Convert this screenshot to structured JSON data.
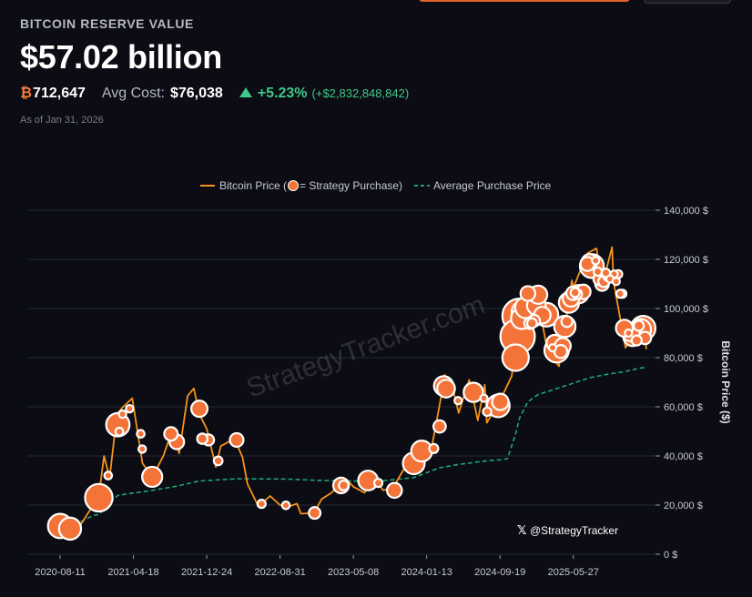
{
  "header": {
    "section_title": "BITCOIN RESERVE VALUE",
    "total_value": "$57.02 billion",
    "btc_symbol": "₿",
    "btc_amount": "712,647",
    "avg_cost_label": "Avg Cost:",
    "avg_cost_value": "$76,038",
    "change_pct": "+5.23%",
    "change_abs": "(+$2,832,848,842)",
    "as_of": "As of Jan 31, 2026"
  },
  "watermark": "StrategyTracker.com",
  "credit": {
    "icon": "x-logo-icon",
    "handle": "@StrategyTracker"
  },
  "colors": {
    "price_line": "#f7931a",
    "bubble_fill": "#f47338",
    "bubble_stroke": "#ffffff",
    "avg_line": "#1fa37a",
    "up": "#3ec98a"
  },
  "chart_data": {
    "type": "line",
    "title": "",
    "xlabel": "",
    "ylabel": "Bitcoin Price ($)",
    "ylim": [
      0,
      140000
    ],
    "xlim": [
      "2020-08-11",
      "2026-01-31"
    ],
    "grid": true,
    "legend_position": "top-center",
    "legend": {
      "price_label_before": "Bitcoin Price (",
      "price_label_after": " = Strategy Purchase)",
      "avg_label": "Average Purchase Price"
    },
    "x_ticks": [
      "2020-08-11",
      "2021-04-18",
      "2021-12-24",
      "2022-08-31",
      "2023-05-08",
      "2024-01-13",
      "2024-09-19",
      "2025-05-27"
    ],
    "y_ticks": [
      {
        "value": 0,
        "label": "0 $"
      },
      {
        "value": 20000,
        "label": "20,000 $"
      },
      {
        "value": 40000,
        "label": "40,000 $"
      },
      {
        "value": 60000,
        "label": "60,000 $"
      },
      {
        "value": 80000,
        "label": "80,000 $"
      },
      {
        "value": 100000,
        "label": "100,000 $"
      },
      {
        "value": 120000,
        "label": "120,000 $"
      },
      {
        "value": 140000,
        "label": "140,000 $"
      }
    ],
    "series": [
      {
        "name": "Bitcoin Price",
        "points": [
          [
            "2020-08-11",
            11500
          ],
          [
            "2020-09-14",
            10600
          ],
          [
            "2020-10-20",
            12000
          ],
          [
            "2020-11-24",
            18500
          ],
          [
            "2020-12-21",
            23500
          ],
          [
            "2021-01-08",
            40000
          ],
          [
            "2021-01-27",
            31000
          ],
          [
            "2021-02-21",
            57000
          ],
          [
            "2021-03-14",
            60000
          ],
          [
            "2021-04-14",
            63500
          ],
          [
            "2021-05-19",
            37000
          ],
          [
            "2021-06-22",
            31500
          ],
          [
            "2021-07-29",
            40000
          ],
          [
            "2021-08-24",
            49000
          ],
          [
            "2021-09-07",
            47000
          ],
          [
            "2021-09-21",
            41000
          ],
          [
            "2021-10-20",
            64500
          ],
          [
            "2021-11-10",
            67500
          ],
          [
            "2021-11-29",
            57000
          ],
          [
            "2021-12-24",
            51000
          ],
          [
            "2022-01-24",
            35500
          ],
          [
            "2022-02-10",
            44000
          ],
          [
            "2022-03-28",
            47000
          ],
          [
            "2022-04-25",
            39500
          ],
          [
            "2022-05-12",
            28500
          ],
          [
            "2022-06-18",
            19500
          ],
          [
            "2022-07-28",
            23700
          ],
          [
            "2022-08-31",
            20000
          ],
          [
            "2022-09-30",
            19400
          ],
          [
            "2022-10-28",
            20600
          ],
          [
            "2022-11-10",
            16500
          ],
          [
            "2022-12-24",
            16800
          ],
          [
            "2023-01-20",
            22500
          ],
          [
            "2023-02-20",
            24800
          ],
          [
            "2023-03-21",
            28000
          ],
          [
            "2023-04-14",
            30500
          ],
          [
            "2023-05-08",
            27500
          ],
          [
            "2023-06-15",
            25000
          ],
          [
            "2023-07-14",
            31300
          ],
          [
            "2023-08-18",
            26000
          ],
          [
            "2023-09-20",
            27000
          ],
          [
            "2023-10-26",
            34500
          ],
          [
            "2023-11-30",
            37700
          ],
          [
            "2023-12-27",
            43000
          ],
          [
            "2024-01-13",
            42800
          ],
          [
            "2024-01-23",
            39000
          ],
          [
            "2024-02-28",
            62000
          ],
          [
            "2024-03-14",
            73000
          ],
          [
            "2024-04-12",
            67000
          ],
          [
            "2024-05-01",
            57500
          ],
          [
            "2024-06-06",
            71000
          ],
          [
            "2024-07-05",
            54500
          ],
          [
            "2024-07-29",
            69000
          ],
          [
            "2024-08-05",
            53500
          ],
          [
            "2024-09-19",
            62500
          ],
          [
            "2024-10-29",
            72500
          ],
          [
            "2024-11-22",
            99000
          ],
          [
            "2024-12-17",
            106500
          ],
          [
            "2025-01-20",
            108000
          ],
          [
            "2025-02-28",
            82500
          ],
          [
            "2025-04-08",
            76500
          ],
          [
            "2025-05-22",
            111500
          ],
          [
            "2025-05-27",
            108500
          ],
          [
            "2025-07-14",
            122500
          ],
          [
            "2025-08-14",
            124500
          ],
          [
            "2025-09-01",
            108500
          ],
          [
            "2025-10-06",
            125000
          ],
          [
            "2025-10-11",
            111000
          ],
          [
            "2025-11-21",
            84000
          ],
          [
            "2025-12-15",
            89000
          ],
          [
            "2026-01-14",
            96500
          ],
          [
            "2026-01-31",
            83500
          ]
        ]
      },
      {
        "name": "Average Purchase Price",
        "points": [
          [
            "2020-08-11",
            11200
          ],
          [
            "2020-09-14",
            11100
          ],
          [
            "2020-12-04",
            15900
          ],
          [
            "2020-12-21",
            16100
          ],
          [
            "2021-02-24",
            24000
          ],
          [
            "2021-06-21",
            26000
          ],
          [
            "2021-09-13",
            27700
          ],
          [
            "2021-11-29",
            29800
          ],
          [
            "2022-04-05",
            30700
          ],
          [
            "2022-09-20",
            30600
          ],
          [
            "2022-12-27",
            30100
          ],
          [
            "2023-04-05",
            29800
          ],
          [
            "2023-08-01",
            29700
          ],
          [
            "2023-11-30",
            31200
          ],
          [
            "2024-02-26",
            35200
          ],
          [
            "2024-04-29",
            36500
          ],
          [
            "2024-08-15",
            38200
          ],
          [
            "2024-09-20",
            38400
          ],
          [
            "2024-10-14",
            38800
          ],
          [
            "2024-11-11",
            48900
          ],
          [
            "2024-11-25",
            55600
          ],
          [
            "2024-12-23",
            62000
          ],
          [
            "2025-01-27",
            65000
          ],
          [
            "2025-04-28",
            68500
          ],
          [
            "2025-07-21",
            71800
          ],
          [
            "2025-09-22",
            73300
          ],
          [
            "2025-11-17",
            74300
          ],
          [
            "2026-01-12",
            75800
          ],
          [
            "2026-01-31",
            76038
          ]
        ]
      }
    ],
    "purchases": [
      {
        "date": "2020-08-11",
        "price": 11500,
        "btc": 21454
      },
      {
        "date": "2020-09-14",
        "price": 10419,
        "btc": 16796
      },
      {
        "date": "2020-12-21",
        "price": 23000,
        "btc": 29646
      },
      {
        "date": "2021-01-22",
        "price": 32000,
        "btc": 314
      },
      {
        "date": "2021-02-24",
        "price": 52700,
        "btc": 19452
      },
      {
        "date": "2021-03-01",
        "price": 49900,
        "btc": 328
      },
      {
        "date": "2021-03-12",
        "price": 57000,
        "btc": 262
      },
      {
        "date": "2021-04-05",
        "price": 59200,
        "btc": 253
      },
      {
        "date": "2021-05-13",
        "price": 49000,
        "btc": 271
      },
      {
        "date": "2021-05-18",
        "price": 42800,
        "btc": 229
      },
      {
        "date": "2021-06-21",
        "price": 31500,
        "btc": 13005
      },
      {
        "date": "2021-08-24",
        "price": 49000,
        "btc": 3907
      },
      {
        "date": "2021-09-13",
        "price": 45700,
        "btc": 5050
      },
      {
        "date": "2021-11-29",
        "price": 59200,
        "btc": 7002
      },
      {
        "date": "2021-12-09",
        "price": 47000,
        "btc": 1434
      },
      {
        "date": "2021-12-30",
        "price": 46500,
        "btc": 1914
      },
      {
        "date": "2022-02-01",
        "price": 38000,
        "btc": 660
      },
      {
        "date": "2022-04-05",
        "price": 46500,
        "btc": 4167
      },
      {
        "date": "2022-06-29",
        "price": 20500,
        "btc": 480
      },
      {
        "date": "2022-09-20",
        "price": 19900,
        "btc": 301
      },
      {
        "date": "2022-12-27",
        "price": 16800,
        "btc": 2395
      },
      {
        "date": "2023-03-27",
        "price": 28000,
        "btc": 6455
      },
      {
        "date": "2023-04-05",
        "price": 28000,
        "btc": 1045
      },
      {
        "date": "2023-06-27",
        "price": 30000,
        "btc": 12333
      },
      {
        "date": "2023-08-01",
        "price": 29000,
        "btc": 467
      },
      {
        "date": "2023-09-25",
        "price": 26000,
        "btc": 5445
      },
      {
        "date": "2023-11-30",
        "price": 37000,
        "btc": 16130
      },
      {
        "date": "2023-12-27",
        "price": 42000,
        "btc": 14620
      },
      {
        "date": "2024-02-06",
        "price": 43000,
        "btc": 850
      },
      {
        "date": "2024-02-26",
        "price": 52000,
        "btc": 3000
      },
      {
        "date": "2024-03-11",
        "price": 68500,
        "btc": 12000
      },
      {
        "date": "2024-03-19",
        "price": 67400,
        "btc": 9245
      },
      {
        "date": "2024-04-29",
        "price": 62500,
        "btc": 122
      },
      {
        "date": "2024-06-20",
        "price": 65900,
        "btc": 11931
      },
      {
        "date": "2024-07-26",
        "price": 63500,
        "btc": 169
      },
      {
        "date": "2024-08-06",
        "price": 58000,
        "btc": 500
      },
      {
        "date": "2024-09-13",
        "price": 60400,
        "btc": 18300
      },
      {
        "date": "2024-09-20",
        "price": 62000,
        "btc": 7420
      },
      {
        "date": "2024-11-11",
        "price": 80000,
        "btc": 27200
      },
      {
        "date": "2024-11-18",
        "price": 88600,
        "btc": 51780
      },
      {
        "date": "2024-11-25",
        "price": 97000,
        "btc": 55500
      },
      {
        "date": "2024-12-02",
        "price": 96000,
        "btc": 15400
      },
      {
        "date": "2024-12-09",
        "price": 98500,
        "btc": 21550
      },
      {
        "date": "2024-12-16",
        "price": 100400,
        "btc": 15350
      },
      {
        "date": "2024-12-23",
        "price": 106100,
        "btc": 5262
      },
      {
        "date": "2024-12-30",
        "price": 94000,
        "btc": 2138
      },
      {
        "date": "2025-01-06",
        "price": 94000,
        "btc": 1070
      },
      {
        "date": "2025-01-13",
        "price": 95000,
        "btc": 2530
      },
      {
        "date": "2025-01-21",
        "price": 101200,
        "btc": 11000
      },
      {
        "date": "2025-01-27",
        "price": 105600,
        "btc": 10107
      },
      {
        "date": "2025-02-10",
        "price": 97300,
        "btc": 7633
      },
      {
        "date": "2025-02-24",
        "price": 97500,
        "btc": 20356
      },
      {
        "date": "2025-03-17",
        "price": 84000,
        "btc": 130
      },
      {
        "date": "2025-03-24",
        "price": 86000,
        "btc": 6911
      },
      {
        "date": "2025-03-31",
        "price": 83000,
        "btc": 22048
      },
      {
        "date": "2025-04-14",
        "price": 82500,
        "btc": 3459
      },
      {
        "date": "2025-04-21",
        "price": 84800,
        "btc": 6556
      },
      {
        "date": "2025-04-28",
        "price": 92700,
        "btc": 15355
      },
      {
        "date": "2025-05-05",
        "price": 94700,
        "btc": 1895
      },
      {
        "date": "2025-05-12",
        "price": 102400,
        "btc": 13390
      },
      {
        "date": "2025-05-19",
        "price": 104100,
        "btc": 7390
      },
      {
        "date": "2025-05-26",
        "price": 106200,
        "btc": 4020
      },
      {
        "date": "2025-06-02",
        "price": 106500,
        "btc": 705
      },
      {
        "date": "2025-06-09",
        "price": 105900,
        "btc": 1045
      },
      {
        "date": "2025-06-16",
        "price": 105900,
        "btc": 10100
      },
      {
        "date": "2025-06-30",
        "price": 106800,
        "btc": 4980
      },
      {
        "date": "2025-07-14",
        "price": 118100,
        "btc": 4225
      },
      {
        "date": "2025-07-21",
        "price": 119000,
        "btc": 6220
      },
      {
        "date": "2025-07-29",
        "price": 117300,
        "btc": 21021
      },
      {
        "date": "2025-08-11",
        "price": 119500,
        "btc": 155
      },
      {
        "date": "2025-08-18",
        "price": 115000,
        "btc": 430
      },
      {
        "date": "2025-08-25",
        "price": 112000,
        "btc": 3081
      },
      {
        "date": "2025-09-02",
        "price": 110000,
        "btc": 4048
      },
      {
        "date": "2025-09-08",
        "price": 111000,
        "btc": 1955
      },
      {
        "date": "2025-09-15",
        "price": 114500,
        "btc": 525
      },
      {
        "date": "2025-09-22",
        "price": 113000,
        "btc": 850
      },
      {
        "date": "2025-09-29",
        "price": 112000,
        "btc": 196
      },
      {
        "date": "2025-10-13",
        "price": 114000,
        "btc": 220
      },
      {
        "date": "2025-10-20",
        "price": 111000,
        "btc": 168
      },
      {
        "date": "2025-10-27",
        "price": 114000,
        "btc": 390
      },
      {
        "date": "2025-11-03",
        "price": 106000,
        "btc": 397
      },
      {
        "date": "2025-11-10",
        "price": 106000,
        "btc": 487
      },
      {
        "date": "2025-11-17",
        "price": 92000,
        "btc": 8178
      },
      {
        "date": "2025-12-01",
        "price": 90000,
        "btc": 130
      },
      {
        "date": "2025-12-08",
        "price": 90500,
        "btc": 10624
      },
      {
        "date": "2025-12-15",
        "price": 88500,
        "btc": 10645
      },
      {
        "date": "2025-12-29",
        "price": 87000,
        "btc": 1229
      },
      {
        "date": "2026-01-05",
        "price": 93000,
        "btc": 1287
      },
      {
        "date": "2026-01-12",
        "price": 91500,
        "btc": 13627
      },
      {
        "date": "2026-01-20",
        "price": 92000,
        "btc": 22305
      },
      {
        "date": "2026-01-26",
        "price": 88000,
        "btc": 2932
      }
    ]
  }
}
